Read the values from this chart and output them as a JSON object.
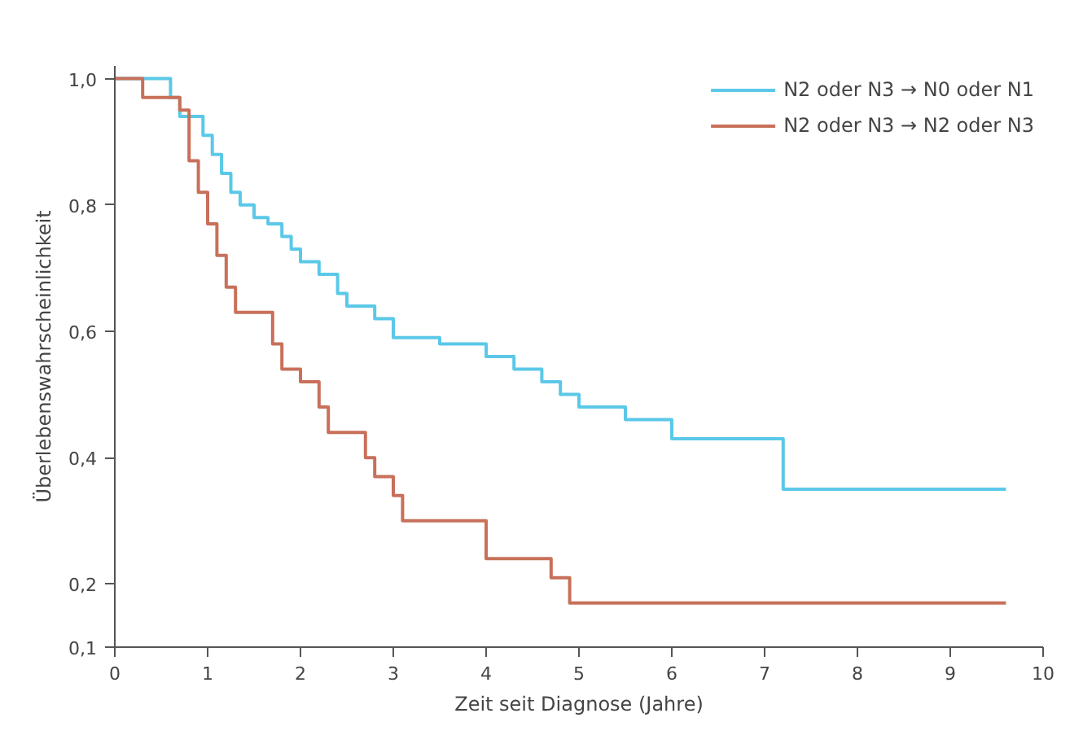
{
  "chart_data": {
    "type": "step",
    "xlabel": "Zeit seit Diagnose (Jahre)",
    "ylabel": "Überlebenswahrscheinlichkeit",
    "xlim": [
      0,
      10
    ],
    "xticks": [
      0,
      1,
      2,
      3,
      4,
      5,
      6,
      7,
      8,
      9,
      10
    ],
    "ylim": [
      0.1,
      1.02
    ],
    "yticks": [
      {
        "value": 0.1,
        "label": "0,1"
      },
      {
        "value": 0.2,
        "label": "0,2"
      },
      {
        "value": 0.4,
        "label": "0,4"
      },
      {
        "value": 0.6,
        "label": "0,6"
      },
      {
        "value": 0.8,
        "label": "0,8"
      },
      {
        "value": 1.0,
        "label": "1,0"
      }
    ],
    "grid": false,
    "legend": "top right",
    "line_style": "solid",
    "marker": "none",
    "series": [
      {
        "name": "N2 oder N3 → N0 oder N1",
        "color": "#5bc8e8",
        "x": [
          0,
          0.5,
          0.6,
          0.7,
          0.95,
          1.05,
          1.15,
          1.25,
          1.35,
          1.5,
          1.65,
          1.8,
          1.9,
          2.0,
          2.2,
          2.4,
          2.5,
          2.8,
          3.0,
          3.5,
          4.0,
          4.3,
          4.6,
          4.8,
          5.0,
          5.5,
          6.0,
          7.2,
          9.6
        ],
        "values": [
          1.0,
          1.0,
          0.97,
          0.94,
          0.91,
          0.88,
          0.85,
          0.82,
          0.8,
          0.78,
          0.77,
          0.75,
          0.73,
          0.71,
          0.69,
          0.66,
          0.64,
          0.62,
          0.59,
          0.58,
          0.56,
          0.54,
          0.52,
          0.5,
          0.48,
          0.46,
          0.43,
          0.35,
          0.35
        ]
      },
      {
        "name": "N2 oder N3 → N2 oder N3",
        "color": "#c8705a",
        "x": [
          0,
          0.3,
          0.7,
          0.8,
          0.9,
          1.0,
          1.1,
          1.2,
          1.3,
          1.7,
          1.8,
          2.0,
          2.2,
          2.3,
          2.7,
          2.8,
          3.0,
          3.1,
          4.0,
          4.7,
          4.9,
          9.6
        ],
        "values": [
          1.0,
          0.97,
          0.95,
          0.87,
          0.82,
          0.77,
          0.72,
          0.67,
          0.63,
          0.58,
          0.54,
          0.52,
          0.48,
          0.44,
          0.4,
          0.37,
          0.34,
          0.3,
          0.24,
          0.21,
          0.17,
          0.17
        ]
      }
    ]
  }
}
